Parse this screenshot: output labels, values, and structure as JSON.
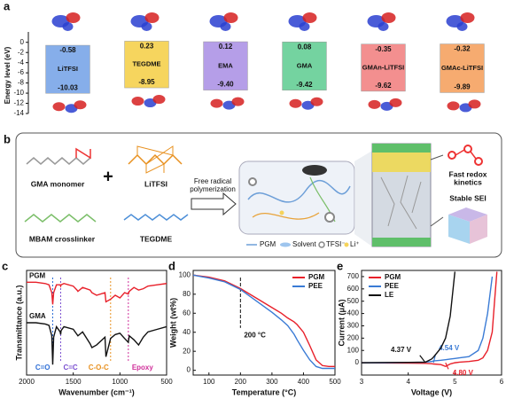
{
  "chart_data": [
    {
      "panel": "a",
      "type": "floating_bar",
      "ylabel": "Energy level (eV)",
      "categories": [
        "LiTFSI",
        "TEGDME",
        "EMA",
        "GMA",
        "GMAn-LiTFSI",
        "GMAc-LiTFSI"
      ],
      "upper": [
        -0.58,
        0.23,
        0.12,
        0.08,
        -0.35,
        -0.32
      ],
      "lower": [
        -10.03,
        -8.95,
        -9.4,
        -9.42,
        -9.62,
        -9.89
      ],
      "lower_labels": [
        "-10.03",
        "-8.95",
        "-9.40",
        "-9.42",
        "-9.62",
        "-9.89"
      ],
      "colors": [
        "#86aeea",
        "#f6d55e",
        "#b59ee8",
        "#74d3a0",
        "#f38f8f",
        "#f6ab70"
      ],
      "ylim": [
        -14,
        1
      ],
      "yticks": [
        0,
        -2,
        -4,
        -6,
        -8,
        -10,
        -12,
        -14
      ]
    },
    {
      "panel": "c",
      "type": "line",
      "xlabel": "Wavenumber (cm⁻¹)",
      "ylabel": "Transmittance (a.u.)",
      "x": [
        2000,
        1900,
        1800,
        1760,
        1730,
        1720,
        1710,
        1680,
        1640,
        1635,
        1630,
        1600,
        1500,
        1460,
        1450,
        1400,
        1320,
        1300,
        1250,
        1160,
        1150,
        1100,
        1050,
        1000,
        950,
        910,
        900,
        850,
        800,
        750,
        700,
        600,
        500
      ],
      "xlim": [
        2000,
        500
      ],
      "xticks": [
        2000,
        1500,
        1000,
        500
      ],
      "ylim": [
        1.5,
        9.5
      ],
      "legend": "inline",
      "series": [
        {
          "name": "PGM",
          "color": "#e8202a",
          "values": [
            8.6,
            8.6,
            8.5,
            8.4,
            7.8,
            6.9,
            7.8,
            8.4,
            8.4,
            8.3,
            8.4,
            8.5,
            8.3,
            8.0,
            7.9,
            8.2,
            8.0,
            7.8,
            7.6,
            7.8,
            7.1,
            7.3,
            7.6,
            7.4,
            7.8,
            7.7,
            7.9,
            8.2,
            8.0,
            8.1,
            8.3,
            8.4,
            8.5
          ]
        },
        {
          "name": "GMA",
          "color": "#111111",
          "values": [
            5.5,
            5.5,
            5.4,
            5.3,
            4.5,
            2.3,
            4.4,
            5.2,
            4.8,
            4.6,
            4.9,
            5.2,
            5.0,
            4.6,
            4.5,
            4.8,
            3.9,
            3.6,
            3.8,
            4.4,
            2.9,
            4.3,
            4.6,
            4.7,
            4.3,
            4.0,
            4.5,
            4.2,
            3.8,
            4.4,
            4.8,
            5.0,
            5.2
          ]
        }
      ],
      "annotations": [
        {
          "text": "C=O",
          "x": 1720,
          "color": "#2f6fd6"
        },
        {
          "text": "C=C",
          "x": 1635,
          "color": "#7a4fd0"
        },
        {
          "text": "C-O-C",
          "x": 1100,
          "color": "#e8901e"
        },
        {
          "text": "Epoxy",
          "x": 910,
          "color": "#d0309a"
        }
      ]
    },
    {
      "panel": "d",
      "type": "line",
      "xlabel": "Temperature (°C)",
      "ylabel": "Weight (wt%)",
      "x": [
        50,
        100,
        150,
        200,
        250,
        300,
        330,
        350,
        370,
        380,
        400,
        420,
        440,
        460,
        480,
        500
      ],
      "xlim": [
        50,
        500
      ],
      "xticks": [
        100,
        200,
        300,
        400,
        500
      ],
      "ylim": [
        -5,
        105
      ],
      "yticks": [
        0,
        20,
        40,
        60,
        80,
        100
      ],
      "legend": "upper right",
      "series": [
        {
          "name": "PGM",
          "color": "#e8202a",
          "values": [
            100,
            98,
            94,
            86,
            76,
            66,
            60,
            55,
            51,
            48,
            40,
            26,
            11,
            5,
            4,
            4
          ]
        },
        {
          "name": "PEE",
          "color": "#3a7bd5",
          "values": [
            100,
            97,
            93,
            85,
            73,
            61,
            53,
            47,
            38,
            32,
            21,
            11,
            4,
            2,
            2,
            2
          ]
        }
      ],
      "annotations": [
        {
          "text": "200 °C",
          "x": 200
        }
      ]
    },
    {
      "panel": "e",
      "type": "line",
      "xlabel": "Voltage (V)",
      "ylabel": "Current (μA)",
      "x": [
        3,
        3.5,
        4,
        4.37,
        4.5,
        4.54,
        4.7,
        4.8,
        4.9,
        5.0,
        5.1,
        5.3,
        5.5,
        5.6,
        5.7,
        5.8,
        5.85,
        5.9
      ],
      "xlim": [
        3,
        6
      ],
      "xticks": [
        3,
        4,
        5,
        6
      ],
      "ylim": [
        -100,
        750
      ],
      "yticks": [
        0,
        100,
        200,
        300,
        400,
        500,
        600,
        700
      ],
      "legend": "upper left",
      "series": [
        {
          "name": "PGM",
          "color": "#e8202a",
          "values": [
            0,
            -2,
            -3,
            -5,
            -8,
            -10,
            -15,
            -30,
            -10,
            0,
            5,
            10,
            20,
            40,
            100,
            250,
            500,
            740
          ]
        },
        {
          "name": "PEE",
          "color": "#3a7bd5",
          "values": [
            0,
            0,
            2,
            5,
            10,
            15,
            20,
            25,
            30,
            35,
            40,
            50,
            100,
            200,
            400,
            700,
            null,
            null
          ]
        },
        {
          "name": "LE",
          "color": "#111111",
          "values": [
            0,
            2,
            3,
            5,
            30,
            45,
            120,
            200,
            380,
            740,
            null,
            null,
            null,
            null,
            null,
            null,
            null,
            null
          ]
        }
      ],
      "annotations": [
        {
          "value": 4.37,
          "label": "4.37 V",
          "color": "#111111"
        },
        {
          "value": 4.54,
          "label": "4.54 V",
          "color": "#3a7bd5"
        },
        {
          "value": 4.8,
          "label": "4.80 V",
          "color": "#e8202a"
        }
      ]
    }
  ],
  "schematic": {
    "panel": "b",
    "gma": "GMA monomer",
    "plus": "+",
    "litfsi": "LiTFSI",
    "mbam": "MBAM crosslinker",
    "tegdme": "TEGDME",
    "arrow_label": [
      "Free radical",
      "polymerization"
    ],
    "legend": [
      "PGM",
      "Solvent",
      "TFSI⁻",
      "Li⁺"
    ],
    "redox": [
      "Fast redox",
      "kinetics"
    ],
    "sei": "Stable SEI"
  }
}
